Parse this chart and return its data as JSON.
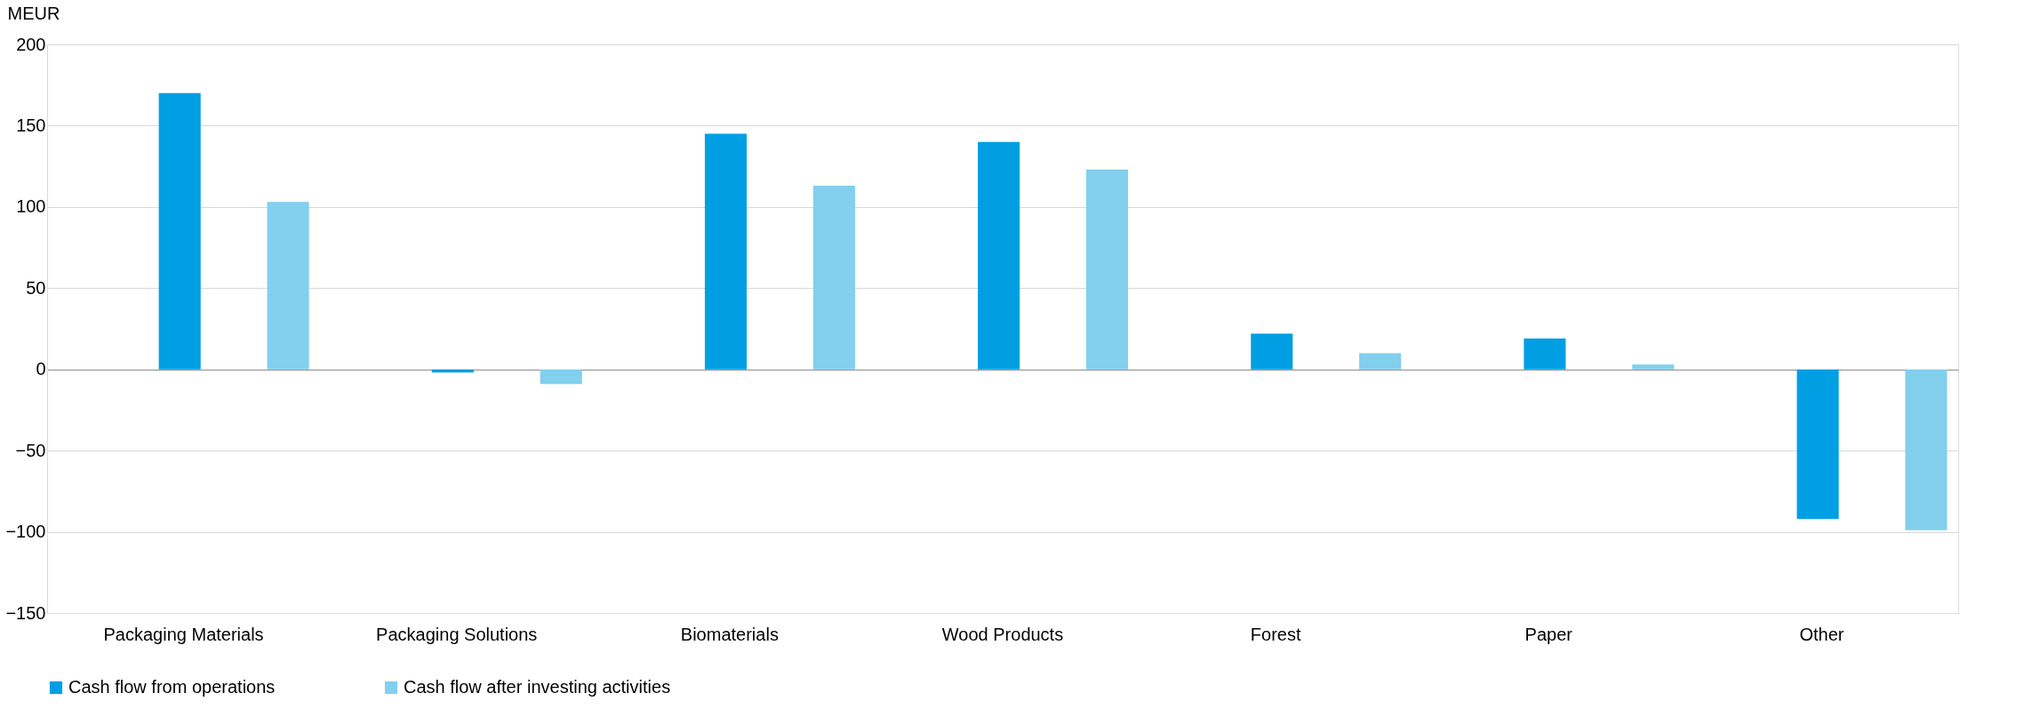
{
  "chart_data": {
    "type": "bar",
    "ylabel": "MEUR",
    "categories": [
      "Packaging Materials",
      "Packaging Solutions",
      "Biomaterials",
      "Wood Products",
      "Forest",
      "Paper",
      "Other"
    ],
    "series": [
      {
        "name": "Cash flow from operations",
        "color": "#009fe3",
        "values": [
          170,
          -2,
          145,
          140,
          22,
          19,
          -92
        ]
      },
      {
        "name": "Cash flow after investing activities",
        "color": "#82cfee",
        "values": [
          103,
          -9,
          113,
          123,
          10,
          3,
          -99
        ]
      }
    ],
    "ylim": [
      -150,
      200
    ],
    "yticks": [
      -150,
      -100,
      -50,
      0,
      50,
      100,
      150,
      200
    ],
    "grid": "y",
    "legend": "bottom"
  }
}
